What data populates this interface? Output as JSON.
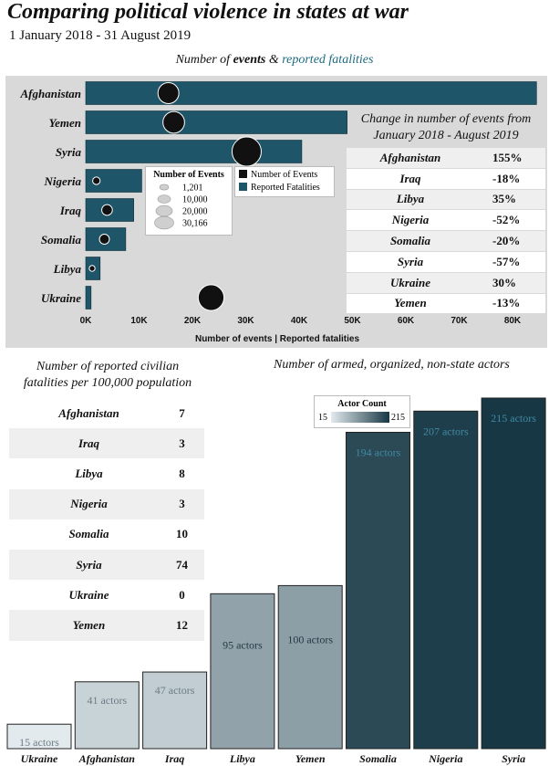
{
  "header": {
    "title": "Comparing political violence in states at war",
    "subtitle": "1 January 2018 - 31 August 2019"
  },
  "top_chart": {
    "title_prefix": "Number of ",
    "title_events": "events",
    "title_amp": " & ",
    "title_fatalities": "reported fatalities",
    "axis_label": "Number of events | Reported fatalities"
  },
  "legend_events": {
    "title": "Number of Events",
    "items": [
      "1,201",
      "10,000",
      "20,000",
      "30,166"
    ]
  },
  "legend_series": {
    "items": [
      "Number of Events",
      "Reported Fatalities"
    ]
  },
  "change_table": {
    "title_line1": "Change in number of events from",
    "title_line2": "January 2018 - August 2019",
    "rows": [
      {
        "country": "Afghanistan",
        "value": "155%"
      },
      {
        "country": "Iraq",
        "value": "-18%"
      },
      {
        "country": "Libya",
        "value": "35%"
      },
      {
        "country": "Nigeria",
        "value": "-52%"
      },
      {
        "country": "Somalia",
        "value": "-20%"
      },
      {
        "country": "Syria",
        "value": "-57%"
      },
      {
        "country": "Ukraine",
        "value": "30%"
      },
      {
        "country": "Yemen",
        "value": "-13%"
      }
    ]
  },
  "civ_table": {
    "title_line1": "Number of reported civilian",
    "title_line2": "fatalities per 100,000 population",
    "rows": [
      {
        "country": "Afghanistan",
        "value": "7"
      },
      {
        "country": "Iraq",
        "value": "3"
      },
      {
        "country": "Libya",
        "value": "8"
      },
      {
        "country": "Nigeria",
        "value": "3"
      },
      {
        "country": "Somalia",
        "value": "10"
      },
      {
        "country": "Syria",
        "value": "74"
      },
      {
        "country": "Ukraine",
        "value": "0"
      },
      {
        "country": "Yemen",
        "value": "12"
      }
    ]
  },
  "actors_chart_title": "Number of armed, organized, non-state actors",
  "actor_legend": {
    "title": "Actor Count",
    "min": "15",
    "max": "215"
  },
  "colors": {
    "bar": "#1f5569",
    "panel": "#d9d9d9",
    "dot": "#111111",
    "teal_text": "#1d6a80",
    "actor_low": "#e3eaee",
    "actor_high": "#173744"
  },
  "chart_data": [
    {
      "type": "bar",
      "orientation": "horizontal",
      "categories": [
        "Afghanistan",
        "Yemen",
        "Syria",
        "Nigeria",
        "Iraq",
        "Somalia",
        "Libya",
        "Ukraine"
      ],
      "series": [
        {
          "name": "Reported Fatalities",
          "values": [
            84500,
            49000,
            40500,
            10500,
            9000,
            7500,
            2700,
            1000
          ]
        },
        {
          "name": "Number of Events",
          "values": [
            15500,
            16500,
            30166,
            2000,
            4000,
            3500,
            1201,
            23500
          ]
        }
      ],
      "xlim": [
        0,
        85000
      ],
      "x_ticks": [
        "0K",
        "10K",
        "20K",
        "30K",
        "40K",
        "50K",
        "60K",
        "70K",
        "80K"
      ],
      "xlabel": "Number of events | Reported fatalities"
    },
    {
      "type": "bar",
      "orientation": "vertical",
      "title": "Number of armed, organized, non-state actors",
      "categories": [
        "Ukraine",
        "Afghanistan",
        "Iraq",
        "Libya",
        "Yemen",
        "Somalia",
        "Nigeria",
        "Syria"
      ],
      "values": [
        15,
        41,
        47,
        95,
        100,
        194,
        207,
        215
      ],
      "value_labels": [
        "15 actors",
        "41 actors",
        "47 actors",
        "95 actors",
        "100 actors",
        "194 actors",
        "207 actors",
        "215 actors"
      ],
      "ylim": [
        0,
        215
      ]
    }
  ]
}
